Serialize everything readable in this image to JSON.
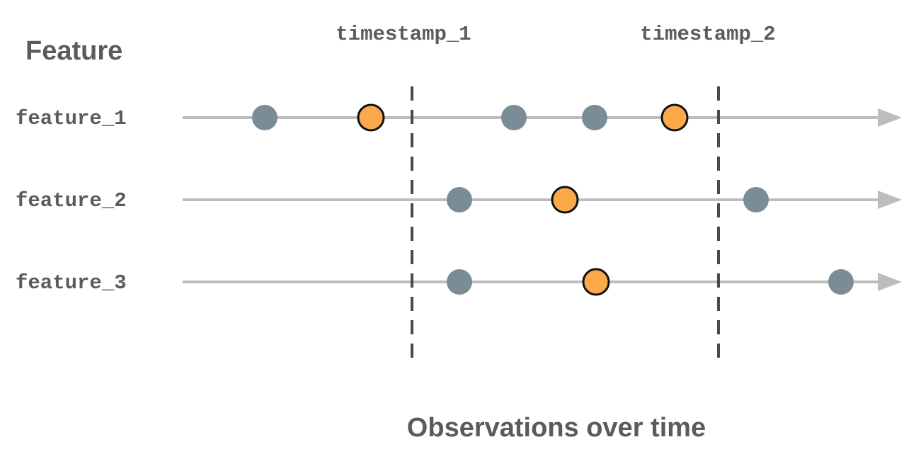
{
  "header": {
    "feature_heading": "Feature"
  },
  "markers": [
    {
      "label": "timestamp_1"
    },
    {
      "label": "timestamp_2"
    }
  ],
  "features": [
    {
      "label": "feature_1",
      "events": [
        {
          "kind": "observation"
        },
        {
          "kind": "selected"
        },
        {
          "kind": "observation"
        },
        {
          "kind": "observation"
        },
        {
          "kind": "selected"
        }
      ]
    },
    {
      "label": "feature_2",
      "events": [
        {
          "kind": "observation"
        },
        {
          "kind": "selected"
        },
        {
          "kind": "observation"
        }
      ]
    },
    {
      "label": "feature_3",
      "events": [
        {
          "kind": "observation"
        },
        {
          "kind": "selected"
        },
        {
          "kind": "observation"
        }
      ]
    }
  ],
  "footer": {
    "axis_caption": "Observations over time"
  },
  "colors": {
    "observation": "#7a8c98",
    "selected": "#fba94a",
    "selected_outline": "#111111",
    "timeline": "#bdbdbd",
    "marker_line": "#4a4a4a",
    "text": "#5b5b5b"
  }
}
